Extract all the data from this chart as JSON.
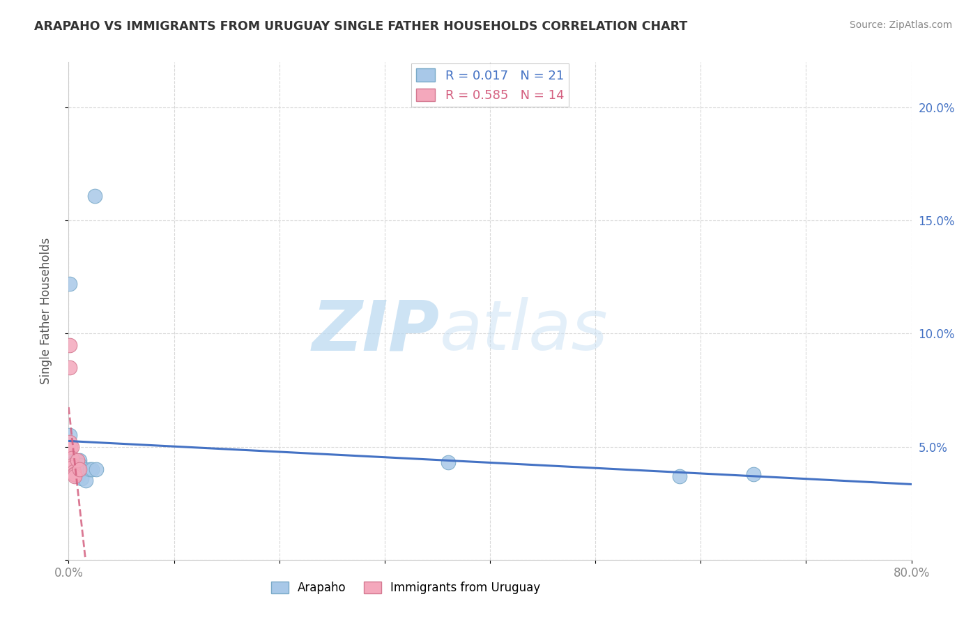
{
  "title": "ARAPAHO VS IMMIGRANTS FROM URUGUAY SINGLE FATHER HOUSEHOLDS CORRELATION CHART",
  "source_text": "Source: ZipAtlas.com",
  "ylabel": "Single Father Households",
  "xlim": [
    0.0,
    0.8
  ],
  "ylim": [
    0.0,
    0.22
  ],
  "x_ticks": [
    0.0,
    0.1,
    0.2,
    0.3,
    0.4,
    0.5,
    0.6,
    0.7,
    0.8
  ],
  "x_tick_labels": [
    "0.0%",
    "",
    "",
    "",
    "",
    "",
    "",
    "",
    "80.0%"
  ],
  "y_ticks": [
    0.0,
    0.05,
    0.1,
    0.15,
    0.2
  ],
  "y_tick_labels_right": [
    "",
    "5.0%",
    "10.0%",
    "15.0%",
    "20.0%"
  ],
  "legend_r1": "0.017",
  "legend_n1": "21",
  "legend_r2": "0.585",
  "legend_n2": "14",
  "arapaho_color": "#a8c8e8",
  "uruguay_color": "#f4a8bc",
  "arapaho_edge_color": "#7aaac8",
  "uruguay_edge_color": "#d47890",
  "arapaho_line_color": "#4472c4",
  "uruguay_line_color": "#d46080",
  "arapaho_x": [
    0.001,
    0.001,
    0.003,
    0.004,
    0.005,
    0.006,
    0.007,
    0.008,
    0.009,
    0.01,
    0.011,
    0.012,
    0.015,
    0.016,
    0.02,
    0.022,
    0.025,
    0.026,
    0.36,
    0.58,
    0.65
  ],
  "arapaho_y": [
    0.055,
    0.122,
    0.043,
    0.044,
    0.043,
    0.038,
    0.044,
    0.038,
    0.037,
    0.044,
    0.042,
    0.036,
    0.04,
    0.035,
    0.04,
    0.04,
    0.161,
    0.04,
    0.043,
    0.037,
    0.038
  ],
  "uruguay_x": [
    0.001,
    0.001,
    0.001,
    0.002,
    0.003,
    0.003,
    0.004,
    0.004,
    0.005,
    0.005,
    0.006,
    0.006,
    0.008,
    0.01
  ],
  "uruguay_y": [
    0.095,
    0.085,
    0.052,
    0.05,
    0.05,
    0.045,
    0.042,
    0.041,
    0.039,
    0.038,
    0.038,
    0.037,
    0.044,
    0.04
  ],
  "watermark_zip": "ZIP",
  "watermark_atlas": "atlas",
  "background_color": "#ffffff",
  "grid_color": "#d8d8d8",
  "tick_color": "#888888"
}
